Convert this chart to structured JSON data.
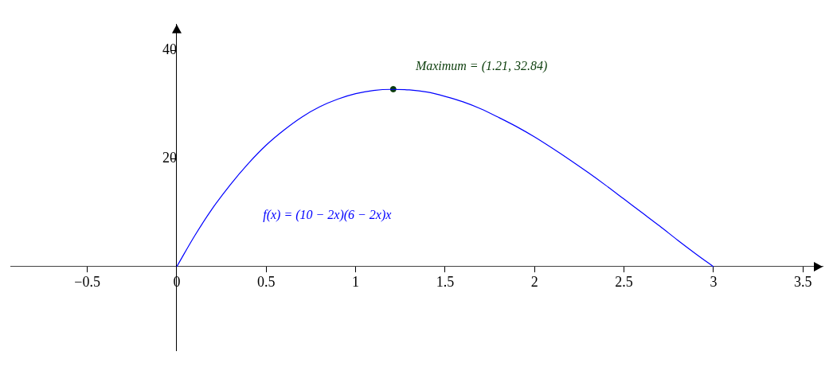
{
  "chart_data": {
    "type": "line",
    "x": [
      0,
      0.1,
      0.2,
      0.3,
      0.4,
      0.5,
      0.6,
      0.7,
      0.8,
      0.9,
      1.0,
      1.1,
      1.2,
      1.3,
      1.4,
      1.5,
      1.6,
      1.7,
      1.8,
      1.9,
      2.0,
      2.1,
      2.2,
      2.3,
      2.4,
      2.5,
      2.6,
      2.7,
      2.8,
      2.9,
      3.0
    ],
    "series": [
      {
        "color": "#0000ff",
        "values": [
          0,
          5.7,
          10.8,
          15.2,
          19.1,
          22.5,
          25.3,
          27.7,
          29.6,
          31.0,
          32.0,
          32.6,
          32.8,
          32.7,
          32.3,
          31.5,
          30.5,
          29.2,
          27.6,
          25.9,
          24.0,
          21.9,
          19.7,
          17.4,
          15.0,
          12.5,
          10.0,
          7.5,
          4.9,
          2.4,
          0
        ]
      },
      {
        "type": "scatter",
        "color": "#0b3d0b",
        "x": [
          1.21
        ],
        "values": [
          32.84
        ]
      }
    ],
    "annotations": [
      "f(x) = (10 − 2x)(6 − 2x)x",
      "Maximum = (1.21, 32.84)"
    ],
    "xlim": [
      -0.93,
      3.61
    ],
    "ylim": [
      -15.5,
      44.8
    ],
    "xticks": [
      -0.5,
      0,
      0.5,
      1,
      1.5,
      2,
      2.5,
      3,
      3.5
    ],
    "yticks": [
      20,
      40
    ],
    "grid": false,
    "legend": false,
    "line_style": "solid"
  }
}
